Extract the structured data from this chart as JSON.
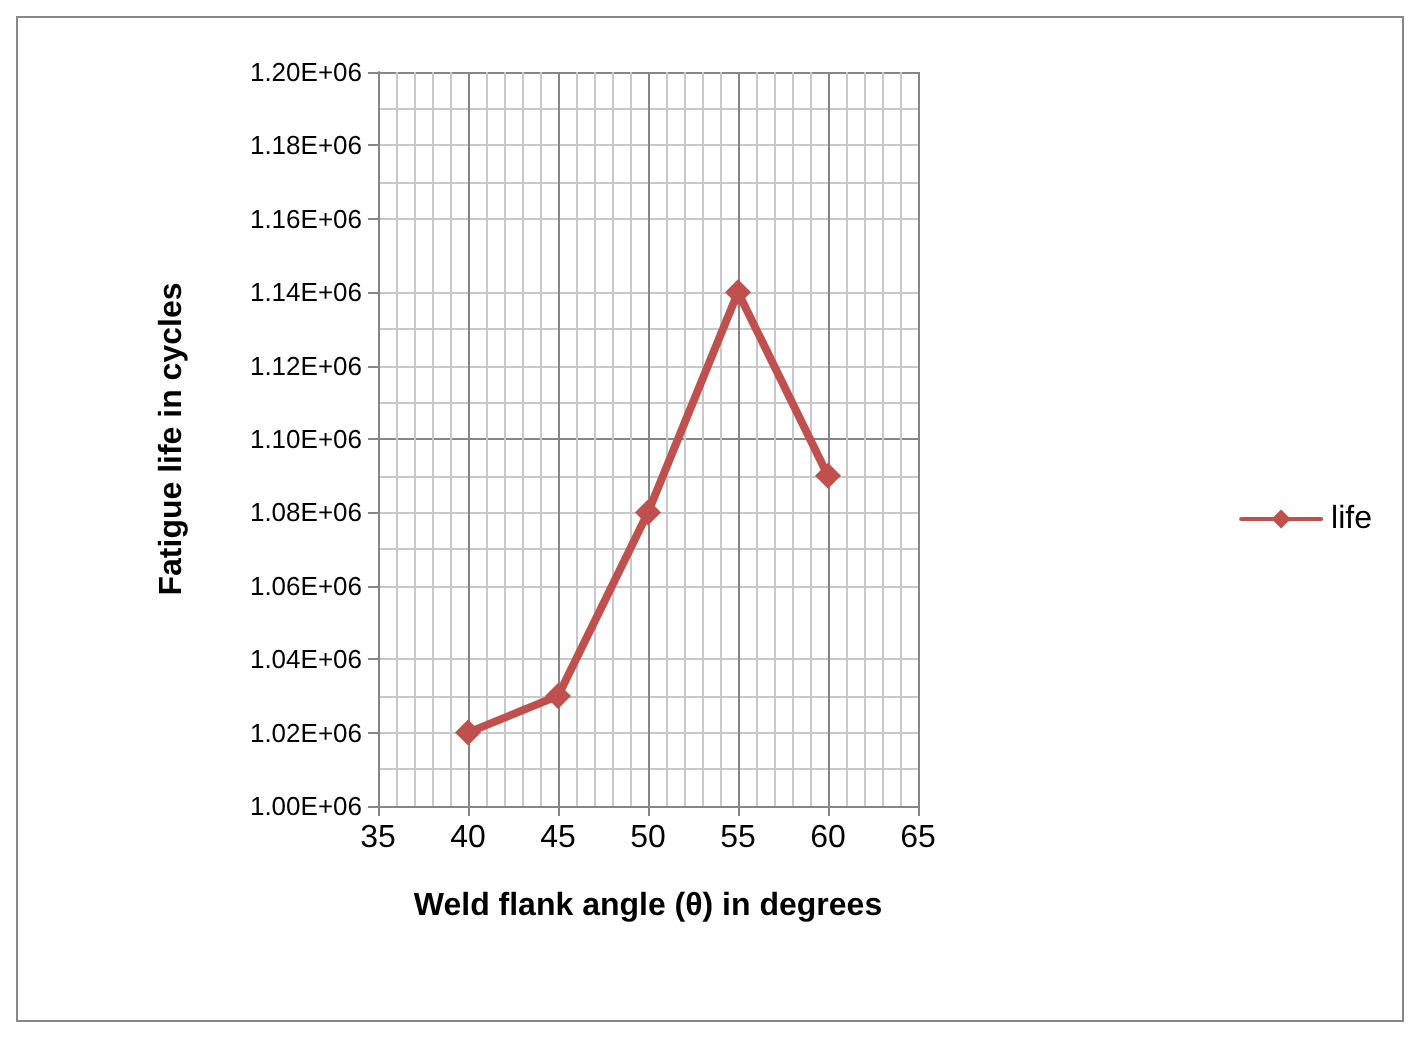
{
  "chart_data": {
    "type": "line",
    "xlabel": "Weld flank angle (θ) in degrees",
    "ylabel": "Fatigue life in cycles",
    "x": [
      40,
      45,
      50,
      55,
      60
    ],
    "series": [
      {
        "name": "life",
        "color": "#c0504d",
        "values": [
          1020000,
          1030000,
          1080000,
          1140000,
          1090000
        ]
      }
    ],
    "xlim": [
      35,
      65
    ],
    "xticks": [
      35,
      40,
      45,
      50,
      55,
      60,
      65
    ],
    "ylim": [
      1000000,
      1200000
    ],
    "yticks": [
      {
        "value": 1000000,
        "label": "1.00E+06"
      },
      {
        "value": 1020000,
        "label": "1.02E+06"
      },
      {
        "value": 1040000,
        "label": "1.04E+06"
      },
      {
        "value": 1060000,
        "label": "1.06E+06"
      },
      {
        "value": 1080000,
        "label": "1.08E+06"
      },
      {
        "value": 1100000,
        "label": "1.10E+06"
      },
      {
        "value": 1120000,
        "label": "1.12E+06"
      },
      {
        "value": 1140000,
        "label": "1.14E+06"
      },
      {
        "value": 1160000,
        "label": "1.16E+06"
      },
      {
        "value": 1180000,
        "label": "1.18E+06"
      },
      {
        "value": 1200000,
        "label": "1.20E+06"
      }
    ],
    "grid": true,
    "legend": "right",
    "marker": "diamond",
    "line_style": "solid"
  }
}
